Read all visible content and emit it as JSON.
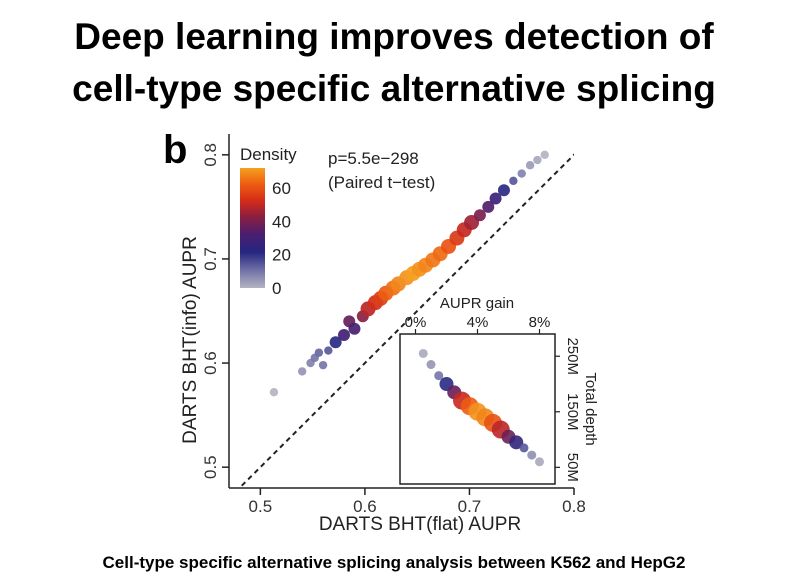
{
  "slide": {
    "title_line1": "Deep learning improves detection of",
    "title_line2": "cell-type specific alternative splicing",
    "panel_label": "b",
    "caption": "Cell-type specific alternative splicing analysis between K562 and HepG2"
  },
  "colors": {
    "density_scale": [
      "#b4b4c2",
      "#7474a8",
      "#262682",
      "#4a1e6e",
      "#8e1f40",
      "#d12a1a",
      "#ec5a10",
      "#f5a020"
    ],
    "diagonal": "#222222"
  },
  "chart_data": [
    {
      "type": "scatter",
      "xlabel": "DARTS BHT(flat) AUPR",
      "ylabel": "DARTS BHT(info) AUPR",
      "xlim": [
        0.47,
        0.8
      ],
      "ylim": [
        0.48,
        0.82
      ],
      "xticks": [
        "0.5",
        "0.6",
        "0.7",
        "0.8"
      ],
      "yticks": [
        "0.5",
        "0.6",
        "0.7",
        "0.8"
      ],
      "diagonal_reference": true,
      "annotation_line1": "p=5.5e−298",
      "annotation_line2": "(Paired t−test)",
      "legend": {
        "title": "Density",
        "ticks": [
          "60",
          "40",
          "20",
          "0"
        ],
        "placement": "top-left"
      },
      "points": [
        [
          0.513,
          0.572
        ],
        [
          0.54,
          0.592
        ],
        [
          0.548,
          0.6
        ],
        [
          0.552,
          0.605
        ],
        [
          0.556,
          0.61
        ],
        [
          0.56,
          0.598
        ],
        [
          0.565,
          0.612
        ],
        [
          0.572,
          0.62
        ],
        [
          0.58,
          0.627
        ],
        [
          0.585,
          0.64
        ],
        [
          0.59,
          0.633
        ],
        [
          0.598,
          0.645
        ],
        [
          0.603,
          0.652
        ],
        [
          0.61,
          0.658
        ],
        [
          0.615,
          0.662
        ],
        [
          0.62,
          0.667
        ],
        [
          0.627,
          0.672
        ],
        [
          0.632,
          0.676
        ],
        [
          0.64,
          0.682
        ],
        [
          0.646,
          0.686
        ],
        [
          0.652,
          0.69
        ],
        [
          0.658,
          0.694
        ],
        [
          0.665,
          0.699
        ],
        [
          0.672,
          0.705
        ],
        [
          0.68,
          0.712
        ],
        [
          0.688,
          0.72
        ],
        [
          0.695,
          0.728
        ],
        [
          0.702,
          0.735
        ],
        [
          0.71,
          0.742
        ],
        [
          0.718,
          0.75
        ],
        [
          0.725,
          0.758
        ],
        [
          0.733,
          0.766
        ],
        [
          0.742,
          0.775
        ],
        [
          0.75,
          0.782
        ],
        [
          0.758,
          0.79
        ],
        [
          0.765,
          0.795
        ],
        [
          0.772,
          0.8
        ]
      ],
      "density": [
        0,
        5,
        8,
        10,
        12,
        10,
        14,
        20,
        28,
        35,
        30,
        40,
        48,
        52,
        56,
        62,
        65,
        68,
        70,
        72,
        70,
        68,
        66,
        64,
        60,
        55,
        50,
        44,
        38,
        32,
        26,
        20,
        14,
        8,
        4,
        2,
        0
      ]
    },
    {
      "type": "scatter",
      "title": "inset",
      "xlabel": "AUPR gain",
      "ylabel": "Total depth",
      "xticks": [
        "0%",
        "4%",
        "8%"
      ],
      "yticks": [
        "250M",
        "150M",
        "50M"
      ],
      "xlim": [
        -0.01,
        0.09
      ],
      "ylim": [
        20,
        290
      ],
      "points": [
        [
          0.005,
          255
        ],
        [
          0.01,
          235
        ],
        [
          0.015,
          215
        ],
        [
          0.02,
          200
        ],
        [
          0.025,
          185
        ],
        [
          0.03,
          170
        ],
        [
          0.035,
          160
        ],
        [
          0.04,
          150
        ],
        [
          0.045,
          140
        ],
        [
          0.05,
          130
        ],
        [
          0.055,
          118
        ],
        [
          0.06,
          105
        ],
        [
          0.065,
          95
        ],
        [
          0.07,
          85
        ],
        [
          0.075,
          72
        ],
        [
          0.08,
          60
        ]
      ],
      "density": [
        2,
        5,
        10,
        20,
        35,
        50,
        62,
        70,
        68,
        60,
        48,
        36,
        24,
        14,
        6,
        2
      ]
    }
  ]
}
